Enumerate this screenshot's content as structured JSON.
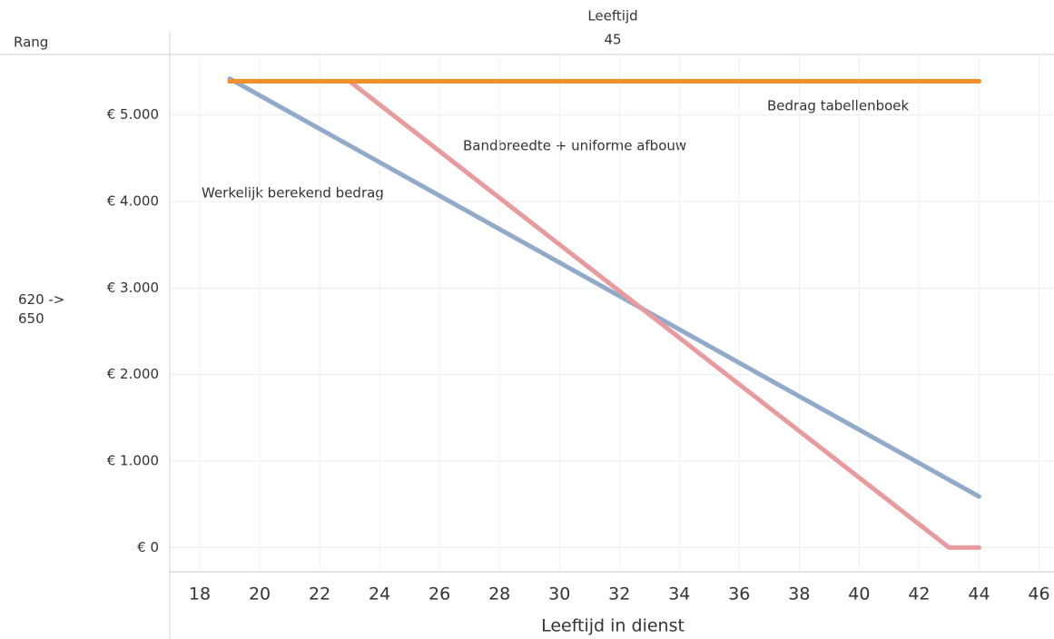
{
  "header": {
    "row_title": "Rang",
    "column_title": "Leeftijd",
    "column_value": "45",
    "row_value": "620 -> 650"
  },
  "chart_data": {
    "type": "line",
    "xlabel": "Leeftijd in dienst",
    "xlim": [
      17,
      46.5
    ],
    "xticks": [
      18,
      20,
      22,
      24,
      26,
      28,
      30,
      32,
      34,
      36,
      38,
      40,
      42,
      44,
      46
    ],
    "ylim": [
      -280,
      5700
    ],
    "yticks": [
      {
        "value": 0,
        "label": "€ 0"
      },
      {
        "value": 1000,
        "label": "€ 1.000"
      },
      {
        "value": 2000,
        "label": "€ 2.000"
      },
      {
        "value": 3000,
        "label": "€ 3.000"
      },
      {
        "value": 4000,
        "label": "€ 4.000"
      },
      {
        "value": 5000,
        "label": "€ 5.000"
      }
    ],
    "grid": true,
    "series": [
      {
        "name": "Werkelijk berekend bedrag",
        "color": "#91aacb",
        "x": [
          19,
          44
        ],
        "values": [
          5420,
          590
        ]
      },
      {
        "name": "Bandbreedte + uniforme afbouw",
        "color": "#e99a9c",
        "x": [
          19,
          23,
          43,
          44
        ],
        "values": [
          5390,
          5390,
          0,
          0
        ]
      },
      {
        "name": "Bedrag tabellenboek",
        "color": "#f28e2b",
        "x": [
          19,
          44
        ],
        "values": [
          5390,
          5390
        ]
      }
    ]
  }
}
